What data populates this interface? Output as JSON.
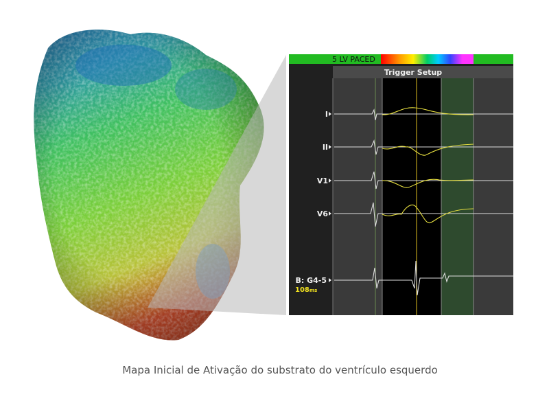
{
  "panel": {
    "header": "5 LV PACED",
    "trigger": "Trigger Setup",
    "leads": [
      "I",
      "II",
      "V1",
      "V6",
      "B: G4-5"
    ],
    "measure": {
      "value": "108",
      "unit": "ms"
    }
  },
  "caption": "Mapa Inicial de Ativação do substrato do ventrículo esquerdo"
}
